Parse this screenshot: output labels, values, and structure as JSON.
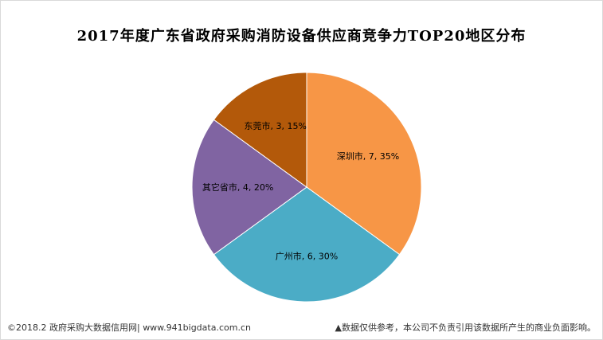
{
  "chart_data": {
    "type": "pie",
    "title": "2017年度广东省政府采购消防设备供应商竞争力TOP20地区分布",
    "slices": [
      {
        "name": "深圳市",
        "value": 7,
        "percent": 35,
        "color": "#F79646",
        "label": "深圳市, 7, 35%"
      },
      {
        "name": "广州市",
        "value": 6,
        "percent": 30,
        "color": "#4BACC6",
        "label": "广州市, 6, 30%"
      },
      {
        "name": "其它省市",
        "value": 4,
        "percent": 20,
        "color": "#8064A2",
        "label": "其它省市, 4, 20%"
      },
      {
        "name": "东莞市",
        "value": 3,
        "percent": 15,
        "color": "#B3590A",
        "label": "东莞市, 3, 15%"
      }
    ]
  },
  "footer": {
    "source": "©2018.2 政府采购大数据信用网| www.941bigdata.com.cn",
    "disclaimer": "▲数据仅供参考，本公司不负责引用该数据所产生的商业负面影响。"
  }
}
